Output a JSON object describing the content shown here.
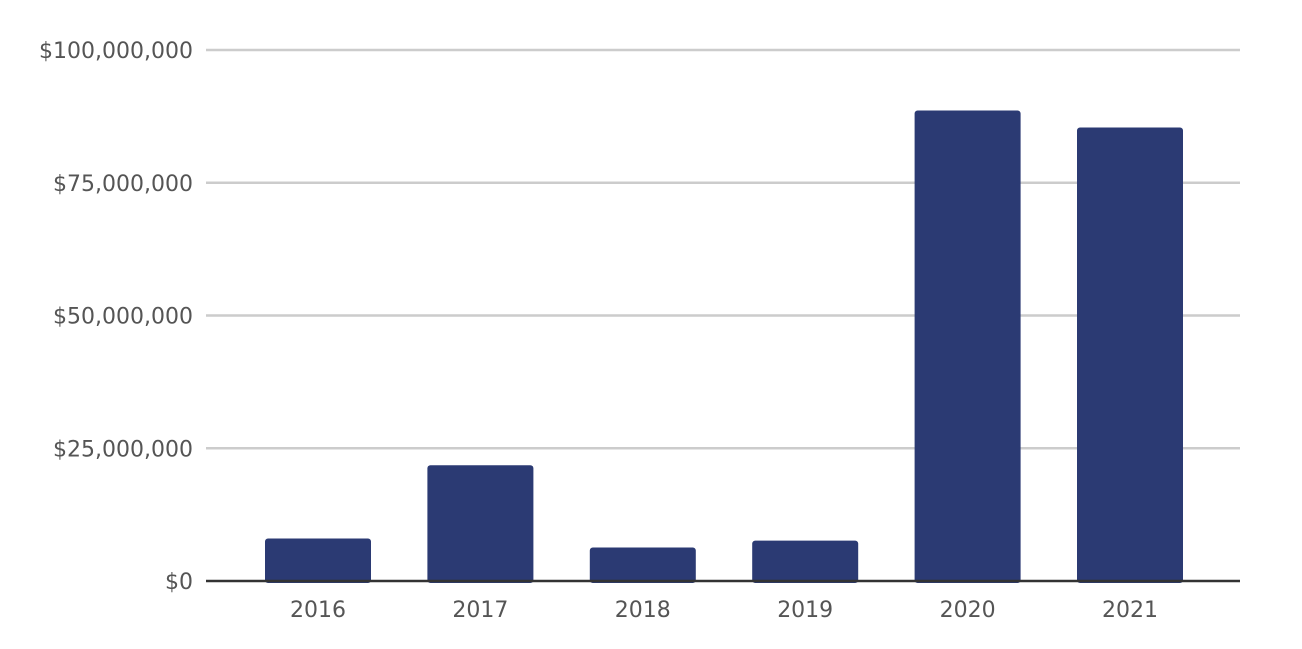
{
  "chart_data": {
    "type": "bar",
    "categories": [
      "2016",
      "2017",
      "2018",
      "2019",
      "2020",
      "2021"
    ],
    "values": [
      8000000,
      21800000,
      6300000,
      7600000,
      88600000,
      85400000
    ],
    "ylim": [
      0,
      100000000
    ],
    "yticks": [
      0,
      25000000,
      50000000,
      75000000,
      100000000
    ],
    "ytick_labels": [
      "$0",
      "$25,000,000",
      "$50,000,000",
      "$75,000,000",
      "$100,000,000"
    ],
    "grid": true,
    "bar_color": "#2b3a73",
    "title": "",
    "xlabel": "",
    "ylabel": ""
  }
}
